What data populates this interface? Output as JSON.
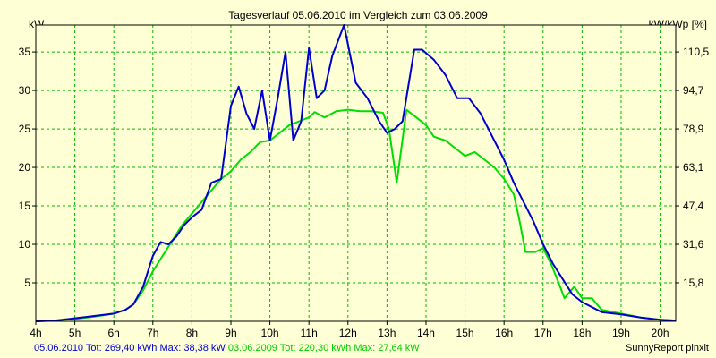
{
  "chart_data": {
    "type": "line",
    "title": "Tagesverlauf 05.06.2010 im Vergleich zum 03.06.2009",
    "ylabel": "kW",
    "ylabel_right": "kW/kWp [%]",
    "xlim": [
      4,
      20.4
    ],
    "ylim": [
      0,
      38.5
    ],
    "x_ticks": [
      "4h",
      "5h",
      "6h",
      "7h",
      "8h",
      "9h",
      "10h",
      "11h",
      "12h",
      "13h",
      "14h",
      "15h",
      "16h",
      "17h",
      "18h",
      "19h",
      "20h"
    ],
    "y_ticks": [
      5,
      10,
      15,
      20,
      25,
      30,
      35
    ],
    "y_ticks_right": [
      {
        "label": "15,8",
        "y": 5
      },
      {
        "label": "31,6",
        "y": 10
      },
      {
        "label": "47,4",
        "y": 15
      },
      {
        "label": "63,1",
        "y": 20
      },
      {
        "label": "78,9",
        "y": 25
      },
      {
        "label": "94,7",
        "y": 30
      },
      {
        "label": "110,5",
        "y": 35
      }
    ],
    "grid": true,
    "series": [
      {
        "name": "05.06.2010",
        "color": "#0000cc",
        "points": [
          [
            4,
            0
          ],
          [
            4.5,
            0.1
          ],
          [
            5,
            0.4
          ],
          [
            5.5,
            0.7
          ],
          [
            6,
            1.0
          ],
          [
            6.3,
            1.5
          ],
          [
            6.5,
            2.2
          ],
          [
            6.75,
            4.5
          ],
          [
            7,
            8.5
          ],
          [
            7.2,
            10.3
          ],
          [
            7.4,
            10
          ],
          [
            7.6,
            11
          ],
          [
            7.8,
            12.5
          ],
          [
            8,
            13.5
          ],
          [
            8.25,
            14.5
          ],
          [
            8.5,
            18
          ],
          [
            8.75,
            18.5
          ],
          [
            9,
            28
          ],
          [
            9.2,
            30.5
          ],
          [
            9.4,
            27
          ],
          [
            9.6,
            25
          ],
          [
            9.8,
            30
          ],
          [
            10,
            23.5
          ],
          [
            10.2,
            29
          ],
          [
            10.4,
            35
          ],
          [
            10.6,
            23.5
          ],
          [
            10.8,
            26
          ],
          [
            11,
            35.5
          ],
          [
            11.2,
            29
          ],
          [
            11.4,
            30
          ],
          [
            11.6,
            34.5
          ],
          [
            11.9,
            38.5
          ],
          [
            12.2,
            31
          ],
          [
            12.5,
            29
          ],
          [
            12.8,
            26
          ],
          [
            13,
            24.5
          ],
          [
            13.2,
            25
          ],
          [
            13.4,
            26
          ],
          [
            13.7,
            35.3
          ],
          [
            13.9,
            35.3
          ],
          [
            14.2,
            34
          ],
          [
            14.5,
            32
          ],
          [
            14.8,
            29
          ],
          [
            15.1,
            29
          ],
          [
            15.4,
            27
          ],
          [
            15.7,
            24
          ],
          [
            16,
            21
          ],
          [
            16.25,
            18
          ],
          [
            16.5,
            15.5
          ],
          [
            16.75,
            13
          ],
          [
            17,
            10
          ],
          [
            17.25,
            7.5
          ],
          [
            17.5,
            5.5
          ],
          [
            17.75,
            3.5
          ],
          [
            18,
            2.5
          ],
          [
            18.5,
            1.2
          ],
          [
            19,
            0.9
          ],
          [
            19.5,
            0.5
          ],
          [
            20,
            0.2
          ],
          [
            20.4,
            0.1
          ]
        ]
      },
      {
        "name": "03.06.2009",
        "color": "#00dd00",
        "points": [
          [
            4,
            0
          ],
          [
            4.5,
            0.1
          ],
          [
            5,
            0.3
          ],
          [
            5.5,
            0.6
          ],
          [
            6,
            1.0
          ],
          [
            6.3,
            1.5
          ],
          [
            6.5,
            2.2
          ],
          [
            6.75,
            4
          ],
          [
            7,
            6.5
          ],
          [
            7.25,
            8.5
          ],
          [
            7.5,
            10.5
          ],
          [
            7.75,
            12.5
          ],
          [
            8,
            14
          ],
          [
            8.25,
            15.5
          ],
          [
            8.5,
            17
          ],
          [
            8.75,
            18.5
          ],
          [
            9,
            19.5
          ],
          [
            9.25,
            21
          ],
          [
            9.5,
            22
          ],
          [
            9.75,
            23.3
          ],
          [
            10,
            23.5
          ],
          [
            10.25,
            24.5
          ],
          [
            10.5,
            25.5
          ],
          [
            10.75,
            26
          ],
          [
            11,
            26.5
          ],
          [
            11.15,
            27.2
          ],
          [
            11.4,
            26.5
          ],
          [
            11.7,
            27.3
          ],
          [
            12,
            27.5
          ],
          [
            12.3,
            27.3
          ],
          [
            12.6,
            27.3
          ],
          [
            12.9,
            27.1
          ],
          [
            13.05,
            25
          ],
          [
            13.25,
            18
          ],
          [
            13.5,
            27.5
          ],
          [
            13.75,
            26.5
          ],
          [
            14,
            25.5
          ],
          [
            14.2,
            24
          ],
          [
            14.5,
            23.5
          ],
          [
            14.75,
            22.5
          ],
          [
            15,
            21.5
          ],
          [
            15.25,
            22
          ],
          [
            15.5,
            21
          ],
          [
            15.75,
            20
          ],
          [
            16,
            18.5
          ],
          [
            16.25,
            16.5
          ],
          [
            16.4,
            13
          ],
          [
            16.55,
            9
          ],
          [
            16.8,
            9
          ],
          [
            17,
            9.5
          ],
          [
            17.2,
            7.5
          ],
          [
            17.4,
            5
          ],
          [
            17.55,
            3
          ],
          [
            17.8,
            4.5
          ],
          [
            18,
            3
          ],
          [
            18.25,
            3
          ],
          [
            18.5,
            1.5
          ],
          [
            19,
            1.0
          ],
          [
            19.5,
            0.5
          ],
          [
            20,
            0.2
          ],
          [
            20.4,
            0.1
          ]
        ]
      }
    ]
  },
  "footer": {
    "series1_text": "05.06.2010 Tot: 269,40 kWh Max: 38,38 kW",
    "series2_text": "03.06.2009 Tot: 220,30 kWh Max: 27,64 kW",
    "credit": "SunnyReport pinxit"
  }
}
